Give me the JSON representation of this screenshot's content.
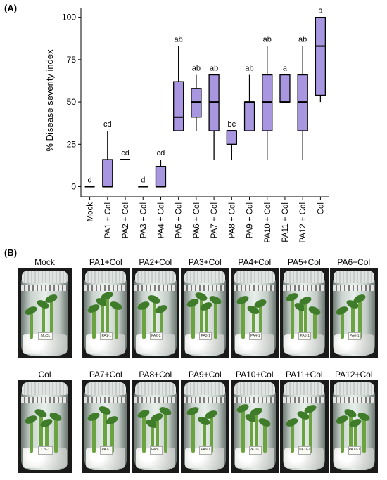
{
  "panel_a_label": "(A)",
  "panel_b_label": "(B)",
  "chart_data": {
    "type": "boxplot",
    "ylabel": "% Disease severity index",
    "xlabel": "",
    "ylim": [
      0,
      100
    ],
    "yticks": [
      0,
      25,
      50,
      75,
      100
    ],
    "grid": false,
    "box_color": "#a996e0",
    "categories": [
      "Mock",
      "PA1 + Col",
      "PA2 + Col",
      "PA3 + Col",
      "PA4 + Col",
      "PA5 + Col",
      "PA6 + Col",
      "PA7 + Col",
      "PA8 + Col",
      "PA9 + Col",
      "PA10 + Col",
      "PA11 + Col",
      "PA12 + Col",
      "Col"
    ],
    "boxes": [
      {
        "min": 0,
        "q1": 0,
        "median": 0,
        "q3": 0,
        "max": 0,
        "letter": "d"
      },
      {
        "min": 0,
        "q1": 0,
        "median": 0,
        "q3": 16,
        "max": 33,
        "letter": "cd"
      },
      {
        "min": 16,
        "q1": 16,
        "median": 16,
        "q3": 16,
        "max": 16,
        "letter": "cd"
      },
      {
        "min": 0,
        "q1": 0,
        "median": 0,
        "q3": 0,
        "max": 0,
        "letter": "d"
      },
      {
        "min": 0,
        "q1": 0,
        "median": 0,
        "q3": 12,
        "max": 16,
        "letter": "cd"
      },
      {
        "min": 33,
        "q1": 33,
        "median": 41,
        "q3": 62,
        "max": 83,
        "letter": "ab"
      },
      {
        "min": 33,
        "q1": 41,
        "median": 50,
        "q3": 58,
        "max": 66,
        "letter": "ab"
      },
      {
        "min": 16,
        "q1": 33,
        "median": 50,
        "q3": 66,
        "max": 66,
        "letter": "ab"
      },
      {
        "min": 16,
        "q1": 25,
        "median": 33,
        "q3": 33,
        "max": 33,
        "letter": "bc"
      },
      {
        "min": 33,
        "q1": 33,
        "median": 50,
        "q3": 50,
        "max": 66,
        "letter": "ab"
      },
      {
        "min": 16,
        "q1": 33,
        "median": 50,
        "q3": 66,
        "max": 83,
        "letter": "ab"
      },
      {
        "min": 50,
        "q1": 50,
        "median": 50,
        "q3": 66,
        "max": 66,
        "letter": "a"
      },
      {
        "min": 16,
        "q1": 33,
        "median": 50,
        "q3": 66,
        "max": 83,
        "letter": "ab"
      },
      {
        "min": 50,
        "q1": 54,
        "median": 83,
        "q3": 100,
        "max": 100,
        "letter": "a"
      }
    ]
  },
  "photos": {
    "row1": [
      {
        "title": "Mock",
        "tag": "MoCk"
      },
      {
        "title": "PA1+Col",
        "tag": "PA1-1"
      },
      {
        "title": "PA2+Col",
        "tag": "PA2-2"
      },
      {
        "title": "PA3+Col",
        "tag": "PA3-1"
      },
      {
        "title": "PA4+Col",
        "tag": "PA4-1"
      },
      {
        "title": "PA5+Col",
        "tag": "PA5-1"
      },
      {
        "title": "PA6+Col",
        "tag": "PA6-1"
      }
    ],
    "row2": [
      {
        "title": "Col",
        "tag": "Col-1"
      },
      {
        "title": "PA7+Col",
        "tag": "PA7-1"
      },
      {
        "title": "PA8+Col",
        "tag": "PA8-1"
      },
      {
        "title": "PA9+Col",
        "tag": "PA9-1"
      },
      {
        "title": "PA10+Col",
        "tag": "PA10-1"
      },
      {
        "title": "PA11+Col",
        "tag": "PA11-1"
      },
      {
        "title": "PA12+Col",
        "tag": "PA12-1"
      }
    ]
  }
}
